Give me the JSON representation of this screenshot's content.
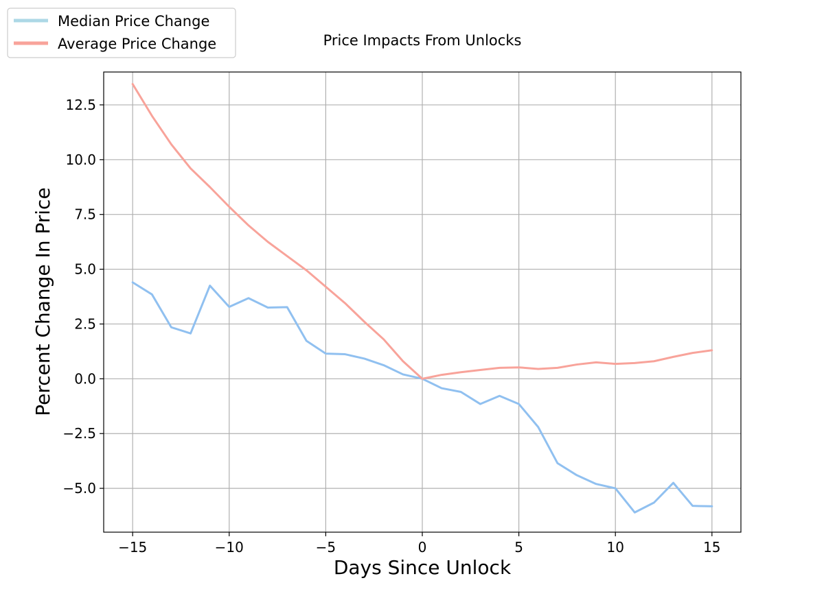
{
  "chart_data": {
    "type": "line",
    "title": "Price Impacts From Unlocks",
    "xlabel": "Days Since Unlock",
    "ylabel": "Percent Change In Price",
    "xlim": [
      -16.5,
      16.5
    ],
    "ylim": [
      -7.0,
      14.0
    ],
    "xticks": [
      -15,
      -10,
      -5,
      0,
      5,
      10,
      15
    ],
    "xtick_labels": [
      "−15",
      "−10",
      "−5",
      "0",
      "5",
      "10",
      "15"
    ],
    "yticks": [
      -5.0,
      -2.5,
      0.0,
      2.5,
      5.0,
      7.5,
      10.0,
      12.5
    ],
    "ytick_labels": [
      "−5.0",
      "−2.5",
      "0.0",
      "2.5",
      "5.0",
      "7.5",
      "10.0",
      "12.5"
    ],
    "grid": true,
    "legend_position": "top-left",
    "x": [
      -15,
      -14,
      -13,
      -12,
      -11,
      -10,
      -9,
      -8,
      -7,
      -6,
      -5,
      -4,
      -3,
      -2,
      -1,
      0,
      1,
      2,
      3,
      4,
      5,
      6,
      7,
      8,
      9,
      10,
      11,
      12,
      13,
      14,
      15
    ],
    "series": [
      {
        "name": "Median Price Change",
        "legend_color": "#add8e6",
        "color": "#90c0f0",
        "values": [
          4.4,
          3.85,
          2.35,
          2.07,
          4.25,
          3.28,
          3.68,
          3.25,
          3.27,
          1.73,
          1.15,
          1.12,
          0.92,
          0.62,
          0.2,
          0.0,
          -0.43,
          -0.6,
          -1.15,
          -0.78,
          -1.15,
          -2.2,
          -3.85,
          -4.4,
          -4.8,
          -5.0,
          -6.1,
          -5.65,
          -4.75,
          -5.8,
          -5.82
        ]
      },
      {
        "name": "Average Price Change",
        "legend_color": "#f8a39a",
        "color": "#f8a39a",
        "values": [
          13.45,
          12.0,
          10.7,
          9.6,
          8.75,
          7.85,
          7.0,
          6.25,
          5.6,
          4.95,
          4.2,
          3.45,
          2.6,
          1.8,
          0.8,
          0.0,
          0.18,
          0.3,
          0.4,
          0.5,
          0.52,
          0.45,
          0.5,
          0.65,
          0.75,
          0.68,
          0.72,
          0.8,
          1.0,
          1.18,
          1.3
        ]
      }
    ]
  }
}
